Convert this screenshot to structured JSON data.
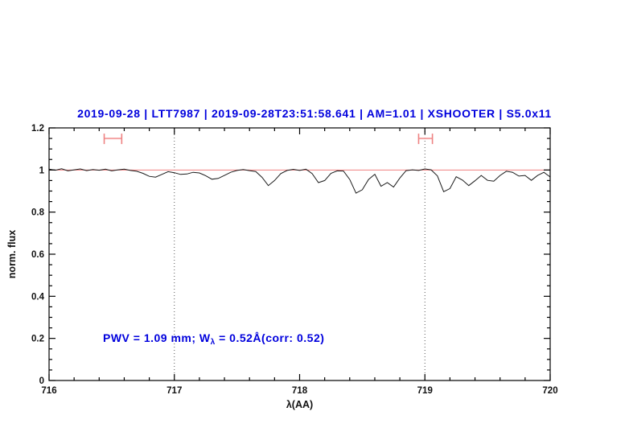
{
  "figure": {
    "title": "2019-09-28 | LTT7987 | 2019-09-28T23:51:58.641 | AM=1.01 | XSHOOTER | S5.0x11",
    "annotation": {
      "pre": "PWV = 1.09 mm; W",
      "sub": "λ",
      "post": " = 0.52Å(corr: 0.52)"
    }
  },
  "axes": {
    "xlabel": "λ(AA)",
    "ylabel": "norm. flux",
    "xlim": [
      716,
      720
    ],
    "ylim": [
      0,
      1.2
    ],
    "xticks": [
      716,
      717,
      718,
      719,
      720
    ],
    "xtick_labels": [
      "716",
      "717",
      "718",
      "719",
      "720"
    ],
    "x_minor_step": 0.2,
    "yticks": [
      0,
      0.2,
      0.4,
      0.6,
      0.8,
      1.0,
      1.2
    ],
    "ytick_labels": [
      "0",
      "0.2",
      "0.4",
      "0.6",
      "0.8",
      "1",
      "1.2"
    ],
    "y_minor_step": 0.05
  },
  "colors": {
    "title_blue": "#0000dd",
    "annotation_blue": "#0000dd",
    "spectrum_line": "#1a1a1a",
    "reference_line_red": "#f08080",
    "marker_bar_red": "#f5a3a3",
    "marker_cap_red": "#ee8282",
    "dotted_guide": "#555555",
    "axis_black": "#000000"
  },
  "chart_data": {
    "type": "line",
    "title": "2019-09-28 | LTT7987 | 2019-09-28T23:51:58.641 | AM=1.01 | XSHOOTER | S5.0x11",
    "xlabel": "λ(AA)",
    "ylabel": "norm. flux",
    "xlim": [
      716,
      720
    ],
    "ylim": [
      0,
      1.2
    ],
    "grid": false,
    "legend": false,
    "x_start": 716.0,
    "x_step": 0.05,
    "flux": [
      1.004,
      0.999,
      1.006,
      0.996,
      1.001,
      1.005,
      0.997,
      1.002,
      0.999,
      1.004,
      0.996,
      1.001,
      1.004,
      0.998,
      0.994,
      0.984,
      0.97,
      0.966,
      0.979,
      0.992,
      0.987,
      0.979,
      0.981,
      0.989,
      0.986,
      0.973,
      0.956,
      0.96,
      0.974,
      0.989,
      0.998,
      1.002,
      0.997,
      0.993,
      0.965,
      0.926,
      0.95,
      0.983,
      0.998,
      1.003,
      0.998,
      1.004,
      0.983,
      0.94,
      0.95,
      0.984,
      0.996,
      0.995,
      0.955,
      0.89,
      0.906,
      0.955,
      0.98,
      0.923,
      0.94,
      0.919,
      0.962,
      0.997,
      1.001,
      0.998,
      1.005,
      1.001,
      0.972,
      0.897,
      0.912,
      0.968,
      0.952,
      0.926,
      0.949,
      0.974,
      0.951,
      0.947,
      0.974,
      0.994,
      0.989,
      0.971,
      0.974,
      0.951,
      0.974,
      0.989,
      0.967
    ],
    "reference_line_y": 1.0,
    "dotted_vlines_x": [
      717,
      719
    ],
    "band_markers": [
      {
        "x_min": 716.44,
        "x_max": 716.58,
        "y": 1.15
      },
      {
        "x_min": 718.95,
        "x_max": 719.06,
        "y": 1.15
      }
    ],
    "annotation_text": "PWV = 1.09 mm; W_λ = 0.52Å(corr: 0.52)"
  }
}
